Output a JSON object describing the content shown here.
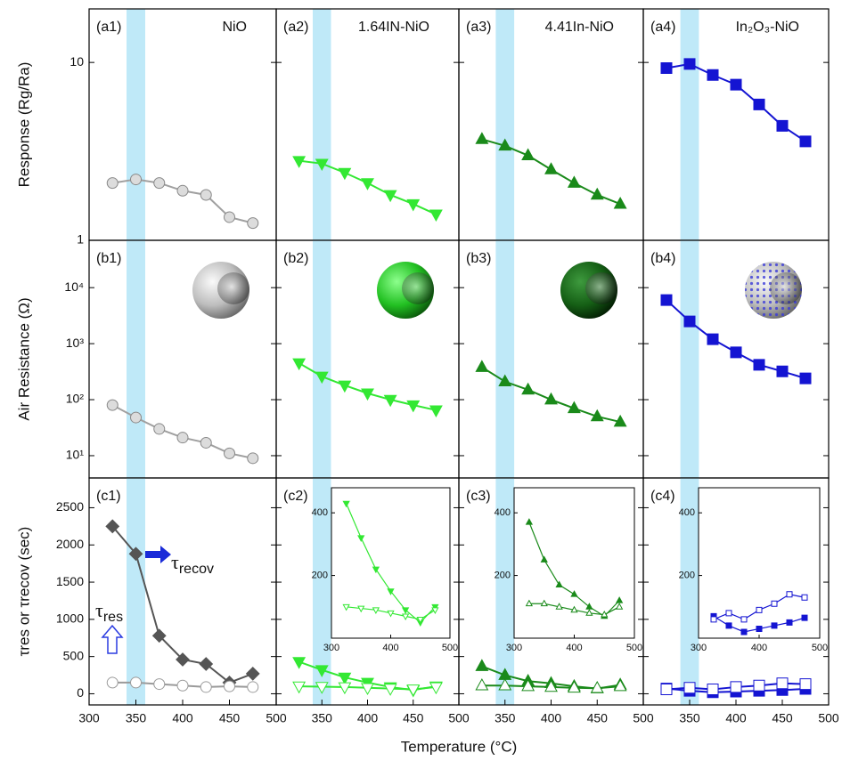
{
  "xlabel": "Temperature (°C)",
  "highlight_band": [
    340,
    360
  ],
  "chart_data": [
    {
      "type": "line",
      "label": "(a1)",
      "title": "NiO",
      "ylabel": "Response (Rg/Ra)",
      "log": true,
      "x": [
        325,
        350,
        375,
        400,
        425,
        450,
        475
      ],
      "xlim": [
        300,
        500
      ],
      "ylim": [
        1,
        20
      ],
      "yticks": [
        1,
        10
      ],
      "series": [
        {
          "color": "#a0a0a0",
          "marker": "circle",
          "filled": true,
          "values": [
            2.1,
            2.2,
            2.1,
            1.9,
            1.8,
            1.35,
            1.25
          ]
        }
      ]
    },
    {
      "type": "line",
      "label": "(a2)",
      "title": "1.64IN-NiO",
      "log": true,
      "x": [
        325,
        350,
        375,
        400,
        425,
        450,
        475
      ],
      "xlim": [
        300,
        500
      ],
      "ylim": [
        1,
        20
      ],
      "series": [
        {
          "color": "#33e833",
          "marker": "tri-down",
          "filled": true,
          "values": [
            2.8,
            2.7,
            2.4,
            2.1,
            1.8,
            1.6,
            1.4
          ]
        }
      ]
    },
    {
      "type": "line",
      "label": "(a3)",
      "title": "4.41In-NiO",
      "log": true,
      "x": [
        325,
        350,
        375,
        400,
        425,
        450,
        475
      ],
      "xlim": [
        300,
        500
      ],
      "ylim": [
        1,
        20
      ],
      "series": [
        {
          "color": "#1a8a1a",
          "marker": "tri-up",
          "filled": true,
          "values": [
            3.7,
            3.4,
            3.0,
            2.5,
            2.1,
            1.8,
            1.6
          ]
        }
      ]
    },
    {
      "type": "line",
      "label": "(a4)",
      "title": "In₂O₃-NiO",
      "log": true,
      "x": [
        325,
        350,
        375,
        400,
        425,
        450,
        475
      ],
      "xlim": [
        300,
        500
      ],
      "ylim": [
        1,
        20
      ],
      "series": [
        {
          "color": "#1414d2",
          "marker": "square",
          "filled": true,
          "values": [
            9.3,
            9.8,
            8.5,
            7.5,
            5.8,
            4.4,
            3.6
          ]
        }
      ]
    },
    {
      "type": "line",
      "label": "(b1)",
      "ylabel": "Air Resistance (Ω)",
      "log": true,
      "x": [
        325,
        350,
        375,
        400,
        425,
        450,
        475
      ],
      "xlim": [
        300,
        500
      ],
      "ylim": [
        4,
        70000
      ],
      "yticks": [
        {
          "value": 10,
          "label": "10¹"
        },
        {
          "value": 100,
          "label": "10²"
        },
        {
          "value": 1000,
          "label": "10³"
        },
        {
          "value": 10000,
          "label": "10⁴"
        }
      ],
      "series": [
        {
          "color": "#a0a0a0",
          "marker": "circle",
          "filled": true,
          "values": [
            80,
            48,
            30,
            21,
            17,
            11,
            9
          ]
        }
      ]
    },
    {
      "type": "line",
      "label": "(b2)",
      "log": true,
      "x": [
        325,
        350,
        375,
        400,
        425,
        450,
        475
      ],
      "xlim": [
        300,
        500
      ],
      "ylim": [
        4,
        70000
      ],
      "series": [
        {
          "color": "#33e833",
          "marker": "tri-down",
          "filled": true,
          "values": [
            450,
            260,
            180,
            130,
            100,
            80,
            65
          ]
        }
      ]
    },
    {
      "type": "line",
      "label": "(b3)",
      "log": true,
      "x": [
        325,
        350,
        375,
        400,
        425,
        450,
        475
      ],
      "xlim": [
        300,
        500
      ],
      "ylim": [
        4,
        70000
      ],
      "series": [
        {
          "color": "#1a8a1a",
          "marker": "tri-up",
          "filled": true,
          "values": [
            380,
            210,
            150,
            100,
            70,
            50,
            40
          ]
        }
      ]
    },
    {
      "type": "line",
      "label": "(b4)",
      "log": true,
      "x": [
        325,
        350,
        375,
        400,
        425,
        450,
        475
      ],
      "xlim": [
        300,
        500
      ],
      "ylim": [
        4,
        70000
      ],
      "series": [
        {
          "color": "#1414d2",
          "marker": "square",
          "filled": true,
          "values": [
            6000,
            2500,
            1200,
            700,
            420,
            320,
            240
          ]
        }
      ]
    },
    {
      "type": "line",
      "label": "(c1)",
      "ylabel": "τres or τrecov (sec)",
      "x": [
        325,
        350,
        375,
        400,
        425,
        450,
        475
      ],
      "xlim": [
        300,
        500
      ],
      "xticks": [
        300,
        350,
        400,
        450,
        500
      ],
      "ylim": [
        -150,
        2900
      ],
      "yticks": [
        0,
        500,
        1000,
        1500,
        2000,
        2500
      ],
      "annotations": [
        {
          "symbol": "τ",
          "sub": "recov"
        },
        {
          "symbol": "τ",
          "sub": "res"
        }
      ],
      "series": [
        {
          "color": "#555555",
          "marker": "diamond",
          "filled": true,
          "values": [
            2250,
            1880,
            780,
            460,
            400,
            150,
            270
          ]
        },
        {
          "color": "#9a9a9a",
          "marker": "circle",
          "filled": false,
          "values": [
            150,
            150,
            130,
            110,
            90,
            100,
            90
          ]
        }
      ]
    },
    {
      "type": "line",
      "label": "(c2)",
      "x": [
        325,
        350,
        375,
        400,
        425,
        450,
        475
      ],
      "xlim": [
        300,
        500
      ],
      "xticks": [
        350,
        400,
        450,
        500
      ],
      "ylim": [
        -150,
        2900
      ],
      "inset": {
        "xlim": [
          300,
          500
        ],
        "xticks": [
          300,
          400,
          500
        ],
        "ylim": [
          0,
          480
        ],
        "yticks": [
          200,
          400
        ]
      },
      "series": [
        {
          "color": "#33e833",
          "marker": "tri-down",
          "filled": true,
          "values": [
            430,
            320,
            220,
            150,
            90,
            50,
            100
          ]
        },
        {
          "color": "#33e833",
          "marker": "tri-down",
          "filled": false,
          "values": [
            100,
            95,
            90,
            80,
            70,
            60,
            90
          ]
        }
      ]
    },
    {
      "type": "line",
      "label": "(c3)",
      "x": [
        325,
        350,
        375,
        400,
        425,
        450,
        475
      ],
      "xlim": [
        300,
        500
      ],
      "xticks": [
        350,
        400,
        450,
        500
      ],
      "ylim": [
        -150,
        2900
      ],
      "inset": {
        "xlim": [
          300,
          500
        ],
        "xticks": [
          300,
          400,
          500
        ],
        "ylim": [
          0,
          480
        ],
        "yticks": [
          200,
          400
        ]
      },
      "series": [
        {
          "color": "#1a8a1a",
          "marker": "tri-up",
          "filled": true,
          "values": [
            370,
            250,
            170,
            140,
            100,
            70,
            120
          ]
        },
        {
          "color": "#1a8a1a",
          "marker": "tri-up",
          "filled": false,
          "values": [
            110,
            110,
            100,
            90,
            80,
            75,
            100
          ]
        }
      ]
    },
    {
      "type": "line",
      "label": "(c4)",
      "x": [
        325,
        350,
        375,
        400,
        425,
        450,
        475
      ],
      "xlim": [
        300,
        500
      ],
      "xticks": [
        350,
        400,
        450,
        500
      ],
      "ylim": [
        -150,
        2900
      ],
      "inset": {
        "xlim": [
          300,
          500
        ],
        "xticks": [
          300,
          400,
          500
        ],
        "ylim": [
          0,
          480
        ],
        "yticks": [
          200,
          400
        ]
      },
      "series": [
        {
          "color": "#1414d2",
          "marker": "square",
          "filled": true,
          "values": [
            70,
            40,
            20,
            30,
            40,
            50,
            65
          ]
        },
        {
          "color": "#1414d2",
          "marker": "square",
          "filled": false,
          "values": [
            60,
            80,
            60,
            90,
            110,
            140,
            130
          ]
        }
      ]
    }
  ]
}
